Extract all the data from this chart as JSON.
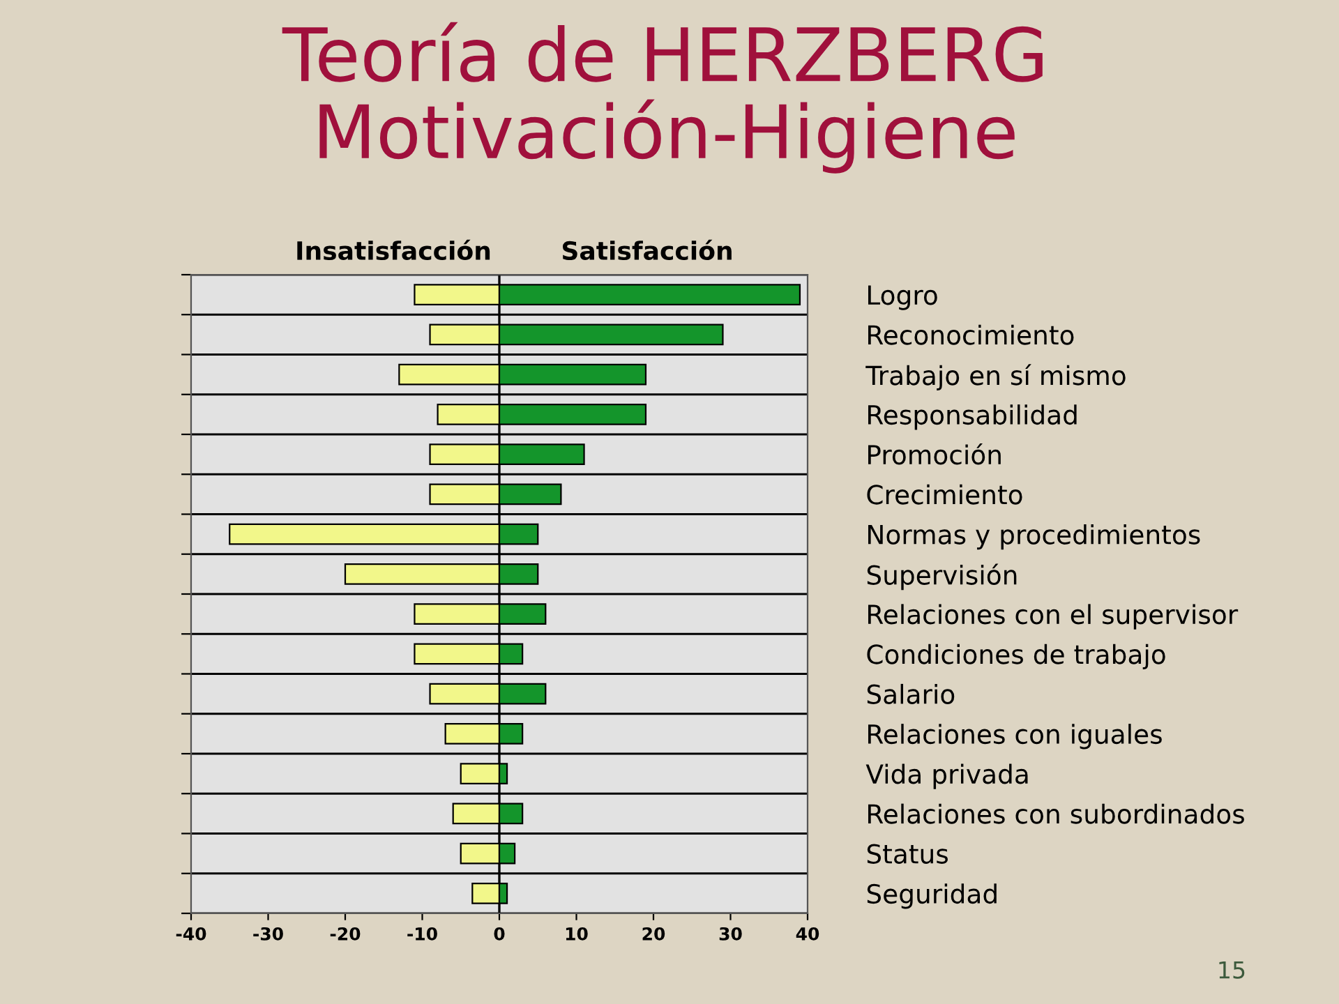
{
  "chart_data": {
    "type": "bar",
    "orientation": "horizontal",
    "stacked": true,
    "title": "Teoría de HERZBERG\nMotivación-Higiene",
    "categories": [
      "Logro",
      "Reconocimiento",
      "Trabajo en sí mismo",
      "Responsabilidad",
      "Promoción",
      "Crecimiento",
      "Normas y procedimientos",
      "Supervisión",
      "Relaciones con el supervisor",
      "Condiciones de trabajo",
      "Salario",
      "Relaciones con iguales",
      "Vida privada",
      "Relaciones con subordinados",
      "Status",
      "Seguridad"
    ],
    "series": [
      {
        "name": "Insatisfacción",
        "color": "#f2f78a",
        "values": [
          -11,
          -9,
          -13,
          -8,
          -9,
          -9,
          -35,
          -20,
          -11,
          -11,
          -9,
          -7,
          -5,
          -6,
          -5,
          -3.5
        ]
      },
      {
        "name": "Satisfacción",
        "color": "#14952b",
        "values": [
          39,
          29,
          19,
          19,
          11,
          8,
          5,
          5,
          6,
          3,
          6,
          3,
          1,
          3,
          2,
          1
        ]
      }
    ],
    "xlim": [
      -40,
      40
    ],
    "xticks": [
      -40,
      -30,
      -20,
      -10,
      0,
      10,
      20,
      30,
      40
    ],
    "grid": "y",
    "annotations": [
      "15"
    ]
  }
}
